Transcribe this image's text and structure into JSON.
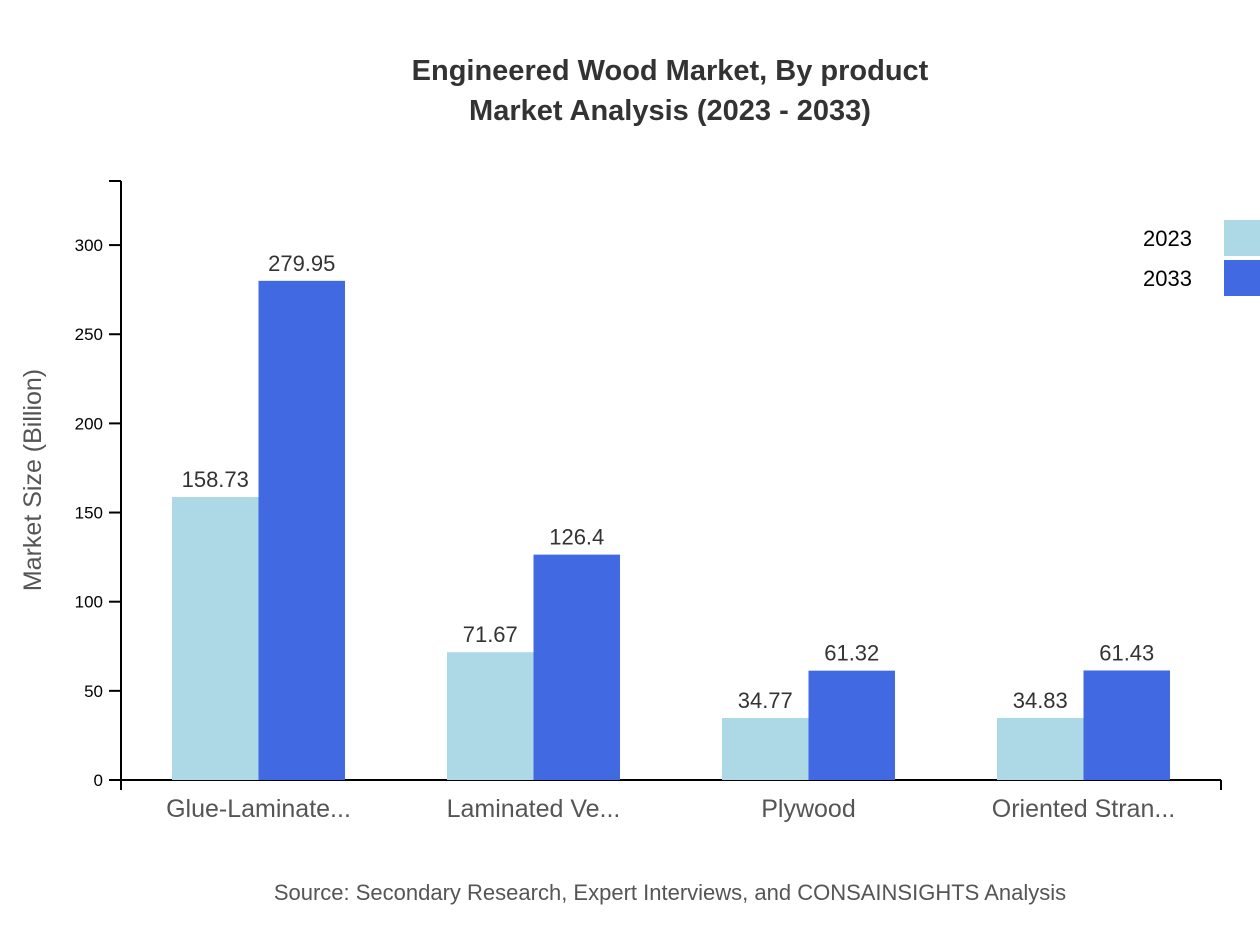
{
  "chart_data": {
    "type": "bar",
    "title": "Engineered Wood Market, By product",
    "subtitle": "Market Analysis (2023 - 2033)",
    "xlabel": "",
    "ylabel": "Market Size (Billion)",
    "ylim": [
      0,
      335.94
    ],
    "yticks": [
      0,
      50,
      100,
      150,
      200,
      250,
      300
    ],
    "categories": [
      "Glue-Laminate...",
      "Laminated Ve...",
      "Plywood",
      "Oriented Stran..."
    ],
    "series": [
      {
        "name": "2023",
        "color": "#ADD8E6",
        "values": [
          158.73,
          71.67,
          34.77,
          34.83
        ]
      },
      {
        "name": "2033",
        "color": "#4169E1",
        "values": [
          279.95,
          126.4,
          61.32,
          61.43
        ]
      }
    ],
    "grid": false,
    "legend_position": "top-right",
    "source": "Source: Secondary Research, Expert Interviews, and CONSAINSIGHTS Analysis"
  }
}
